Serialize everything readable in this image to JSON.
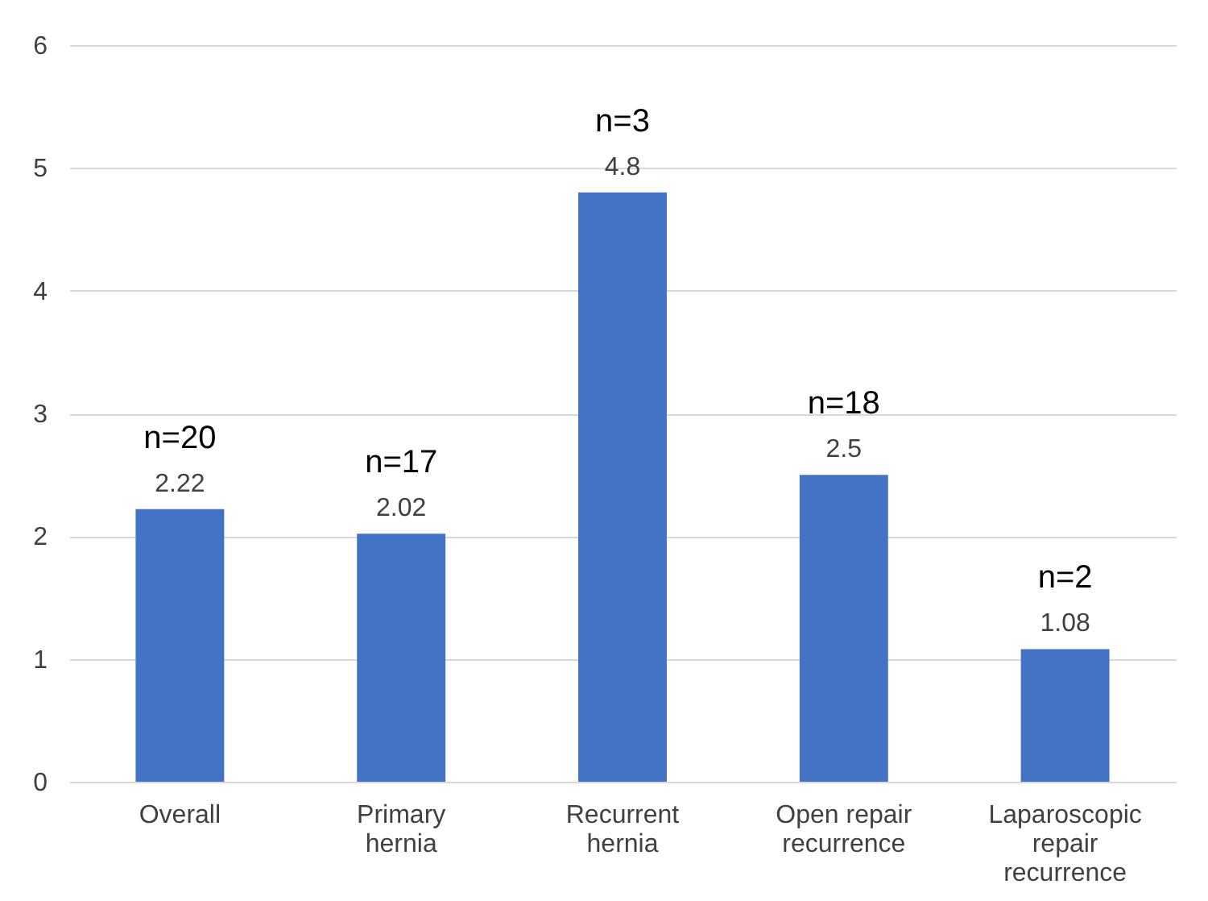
{
  "chart_data": {
    "type": "bar",
    "categories": [
      "Overall",
      "Primary hernia",
      "Recurrent hernia",
      "Open repair recurrence",
      "Laparoscopic repair recurrence"
    ],
    "values": [
      2.22,
      2.02,
      4.8,
      2.5,
      1.08
    ],
    "color": "#4472c4",
    "ylim": [
      0,
      6
    ],
    "yticks": [
      0,
      1,
      2,
      3,
      4,
      5,
      6
    ],
    "grid": "y",
    "data_labels": true,
    "annotations": [
      {
        "text": "n=20",
        "x": "Overall",
        "y": 2.22
      },
      {
        "text": "n=17",
        "x": "Primary hernia",
        "y": 2.02
      },
      {
        "text": "n=3",
        "x": "Recurrent hernia",
        "y": 4.8
      },
      {
        "text": "n=18",
        "x": "Open repair recurrence",
        "y": 2.5
      },
      {
        "text": "n=2",
        "x": "Laparoscopic repair recurrence",
        "y": 1.08
      }
    ]
  }
}
